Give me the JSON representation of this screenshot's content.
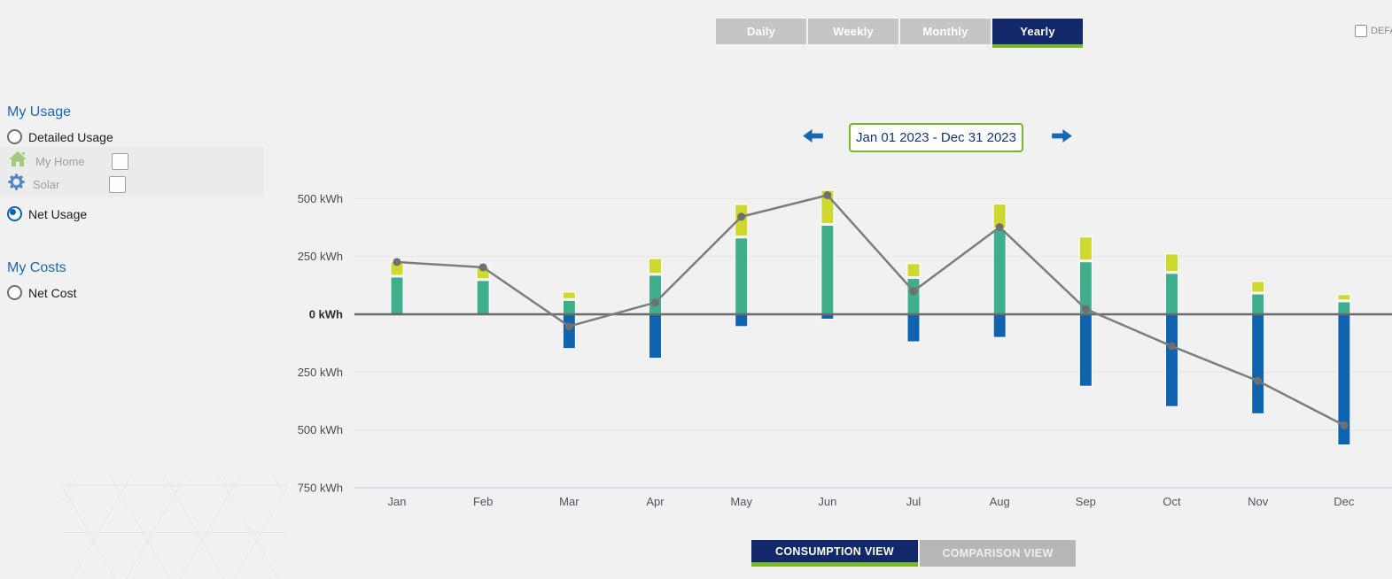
{
  "header": {
    "tabs": [
      {
        "label": "Daily",
        "active": false
      },
      {
        "label": "Weekly",
        "active": false
      },
      {
        "label": "Monthly",
        "active": false
      },
      {
        "label": "Yearly",
        "active": true
      }
    ],
    "default_checkbox": {
      "label": "DEFA",
      "checked": false
    }
  },
  "sidebar": {
    "usage": {
      "title": "My Usage",
      "detailed_option": {
        "label": "Detailed Usage",
        "selected": false
      },
      "sub_items": [
        {
          "label": "My Home",
          "icon": "home-icon",
          "checked": false
        },
        {
          "label": "Solar",
          "icon": "gear-icon",
          "checked": false
        }
      ],
      "net_option": {
        "label": "Net Usage",
        "selected": true
      }
    },
    "costs": {
      "title": "My Costs",
      "net_cost_option": {
        "label": "Net Cost",
        "selected": false
      }
    }
  },
  "date_nav": {
    "range": "Jan 01 2023 - Dec 31 2023"
  },
  "footer": {
    "views": [
      {
        "label": "CONSUMPTION VIEW",
        "active": true
      },
      {
        "label": "COMPARISON VIEW",
        "active": false
      }
    ]
  },
  "colors": {
    "accent_green": "#76b82a",
    "navy": "#12286b",
    "tab_gray": "#c5c5c6",
    "heading_blue": "#1a68af",
    "bar_green": "#3fae8c",
    "bar_yellow": "#cdd92e",
    "bar_blue": "#1063af",
    "line_gray": "#7d7d7d",
    "dot_gray": "#6f6f6f",
    "arrow_blue": "#1668b5",
    "zero_line": "#6b6b6b",
    "grid_line": "#e4e4e6",
    "axis_line": "#ccd3e0"
  },
  "chart_data": {
    "type": "bar",
    "title": "",
    "unit": "kWh",
    "grid": true,
    "legend": "none",
    "categories": [
      "Jan",
      "Feb",
      "Mar",
      "Apr",
      "May",
      "Jun",
      "Jul",
      "Aug",
      "Sep",
      "Oct",
      "Nov",
      "Dec"
    ],
    "ylim": [
      -750,
      560
    ],
    "yticks": [
      {
        "value": 500,
        "label": "500 kWh"
      },
      {
        "value": 250,
        "label": "250 kWh"
      },
      {
        "value": 0,
        "label": "0 kWh"
      },
      {
        "value": -250,
        "label": "250 kWh"
      },
      {
        "value": -500,
        "label": "500 kWh"
      },
      {
        "value": -750,
        "label": "750 kWh"
      }
    ],
    "series": [
      {
        "name": "green-series",
        "color": "#3fae8c",
        "values": [
          161,
          146,
          60,
          169,
          330,
          385,
          155,
          365,
          227,
          177,
          88,
          54
        ]
      },
      {
        "name": "yellow-series",
        "color": "#cdd92e",
        "values": [
          65,
          57,
          36,
          72,
          145,
          151,
          64,
          112,
          107,
          84,
          54,
          31
        ]
      },
      {
        "name": "blue-series",
        "color": "#1063af",
        "values": [
          0,
          0,
          -148,
          -190,
          -53,
          -21,
          -119,
          -100,
          -311,
          -399,
          -430,
          -565
        ]
      }
    ],
    "line_series": {
      "name": "net-usage-line",
      "color": "#7d7d7d",
      "dot_color": "#6f6f6f",
      "values": [
        226,
        203,
        -52,
        51,
        422,
        515,
        100,
        377,
        23,
        -138,
        -288,
        -480
      ]
    }
  }
}
